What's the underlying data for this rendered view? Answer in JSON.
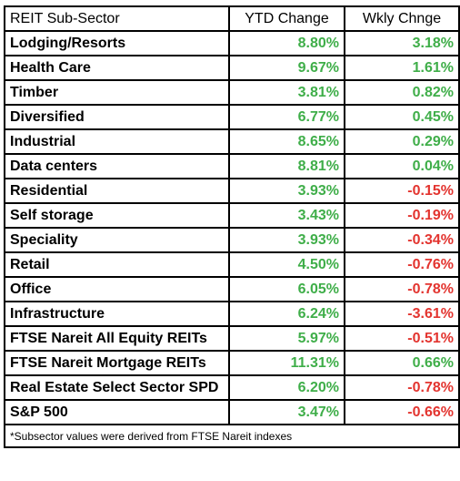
{
  "headers": {
    "sector": "REIT Sub-Sector",
    "ytd": "YTD Change",
    "wkly": "Wkly Chnge"
  },
  "colors": {
    "positive": "#3fae49",
    "negative": "#e3342f",
    "text": "#000000",
    "border": "#000000"
  },
  "rows": [
    {
      "name": "Lodging/Resorts",
      "ytd": "8.80%",
      "wkly": "3.18%"
    },
    {
      "name": "Health Care",
      "ytd": "9.67%",
      "wkly": "1.61%"
    },
    {
      "name": "Timber",
      "ytd": "3.81%",
      "wkly": "0.82%"
    },
    {
      "name": "Diversified",
      "ytd": "6.77%",
      "wkly": "0.45%"
    },
    {
      "name": "Industrial",
      "ytd": "8.65%",
      "wkly": "0.29%"
    },
    {
      "name": "Data centers",
      "ytd": "8.81%",
      "wkly": "0.04%"
    },
    {
      "name": "Residential",
      "ytd": "3.93%",
      "wkly": "-0.15%"
    },
    {
      "name": "Self storage",
      "ytd": "3.43%",
      "wkly": "-0.19%"
    },
    {
      "name": "Speciality",
      "ytd": "3.93%",
      "wkly": "-0.34%"
    },
    {
      "name": "Retail",
      "ytd": "4.50%",
      "wkly": "-0.76%"
    },
    {
      "name": "Office",
      "ytd": "6.05%",
      "wkly": "-0.78%"
    },
    {
      "name": "Infrastructure",
      "ytd": "6.24%",
      "wkly": "-3.61%"
    },
    {
      "name": "FTSE Nareit All Equity REITs",
      "ytd": "5.97%",
      "wkly": "-0.51%"
    },
    {
      "name": "FTSE Nareit Mortgage REITs",
      "ytd": "11.31%",
      "wkly": "0.66%"
    },
    {
      "name": "Real Estate Select Sector SPD",
      "ytd": "6.20%",
      "wkly": "-0.78%"
    },
    {
      "name": "S&P 500",
      "ytd": "3.47%",
      "wkly": "-0.66%"
    }
  ],
  "footnote": "*Subsector values were derived from FTSE Nareit indexes"
}
